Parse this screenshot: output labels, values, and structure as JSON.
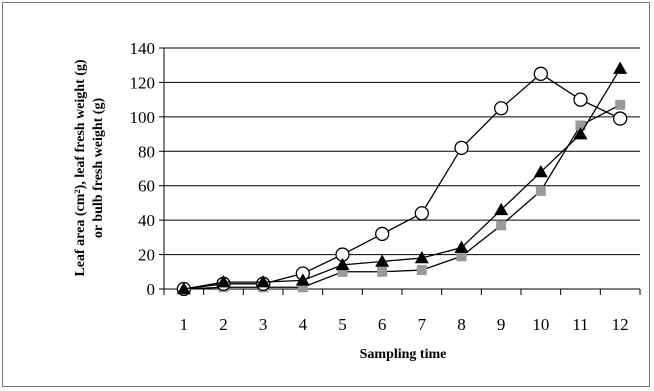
{
  "chart_data": {
    "type": "line",
    "title": "",
    "xlabel": "Sampling time",
    "ylabel_line1": "Leaf area (cm²), leaf fresh weight (g)",
    "ylabel_line2": "or bulb fresh weight (g)",
    "categories": [
      "1",
      "2",
      "3",
      "4",
      "5",
      "6",
      "7",
      "8",
      "9",
      "10",
      "11",
      "12"
    ],
    "ylim": [
      0,
      140
    ],
    "yticks": [
      "0",
      "20",
      "40",
      "60",
      "80",
      "100",
      "120",
      "140"
    ],
    "grid": true,
    "legend": "none",
    "series": [
      {
        "marker": "circle-open",
        "color": "#000000",
        "values": [
          0,
          3,
          3,
          9,
          20,
          32,
          44,
          82,
          105,
          125,
          110,
          99
        ]
      },
      {
        "marker": "triangle",
        "color": "#000000",
        "values": [
          0,
          4,
          4,
          5,
          14,
          16,
          18,
          24,
          46,
          68,
          90,
          128
        ]
      },
      {
        "marker": "square",
        "color": "#999999",
        "values": [
          0,
          1,
          1,
          1,
          10,
          10,
          11,
          19,
          37,
          57,
          95,
          107
        ]
      }
    ]
  }
}
